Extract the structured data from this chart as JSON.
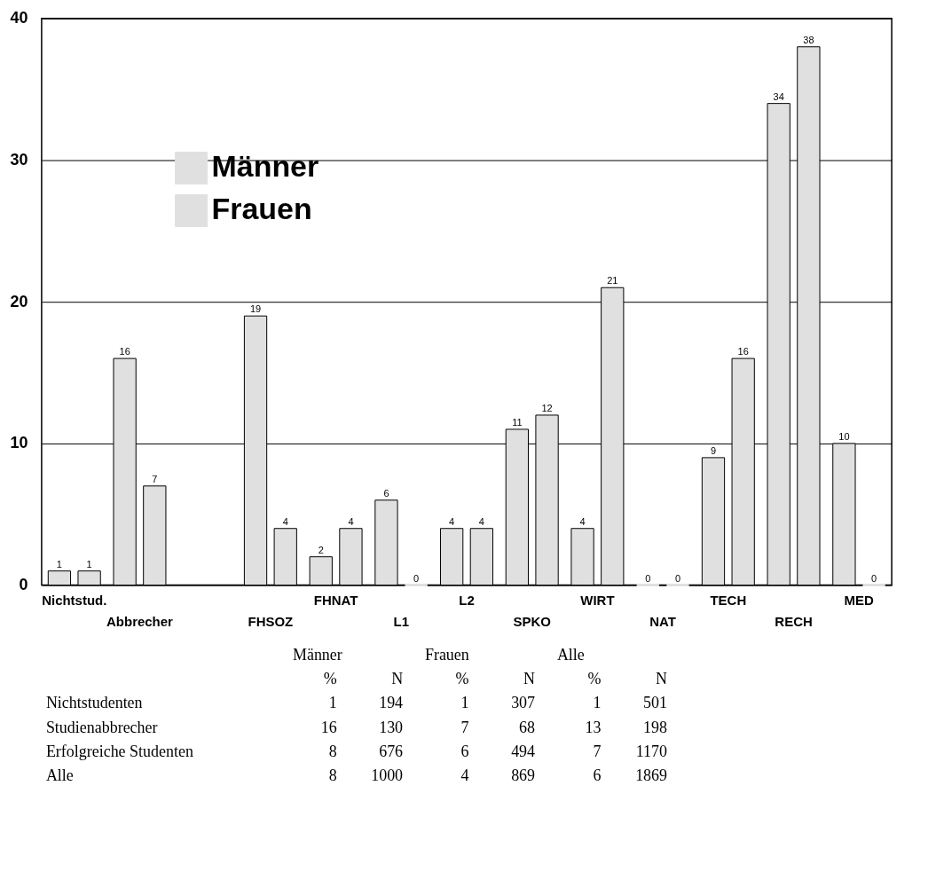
{
  "chart_data": [
    {
      "type": "bar",
      "categories": [
        "Nichtstud.",
        "Abbrecher",
        null,
        "FHSOZ",
        "FHNAT",
        "L1",
        "L2",
        "SPKO",
        "WIRT",
        "NAT",
        "TECH",
        "RECH",
        "MED"
      ],
      "series": [
        {
          "name": "Männer",
          "color": "#e0e0e0",
          "values": [
            1,
            16,
            null,
            19,
            2,
            6,
            4,
            11,
            4,
            0,
            9,
            34,
            10
          ]
        },
        {
          "name": "Frauen",
          "color": "#e0e0e0",
          "values": [
            1,
            7,
            null,
            4,
            4,
            0,
            4,
            12,
            21,
            0,
            16,
            38,
            0
          ]
        }
      ],
      "ylim": [
        0,
        40
      ],
      "yticks": [
        0,
        10,
        20,
        30,
        40
      ],
      "grid": "y",
      "legend": "top left",
      "data_labels": true
    },
    {
      "type": "heatmap",
      "data_labels": true,
      "annotations": [
        "Männer",
        "Frauen",
        "Alle"
      ],
      "categories": [
        "%",
        "N",
        "%",
        "N",
        "%",
        "N"
      ],
      "y_categories": [
        "Nichtstudenten",
        "Studienabbrecher",
        "Erfolgreiche Studenten",
        "Alle"
      ],
      "cells": [
        [
          1,
          194,
          1,
          307,
          1,
          501
        ],
        [
          16,
          130,
          7,
          68,
          13,
          198
        ],
        [
          8,
          676,
          6,
          494,
          7,
          1170
        ],
        [
          8,
          1000,
          4,
          869,
          6,
          1869
        ]
      ]
    }
  ]
}
